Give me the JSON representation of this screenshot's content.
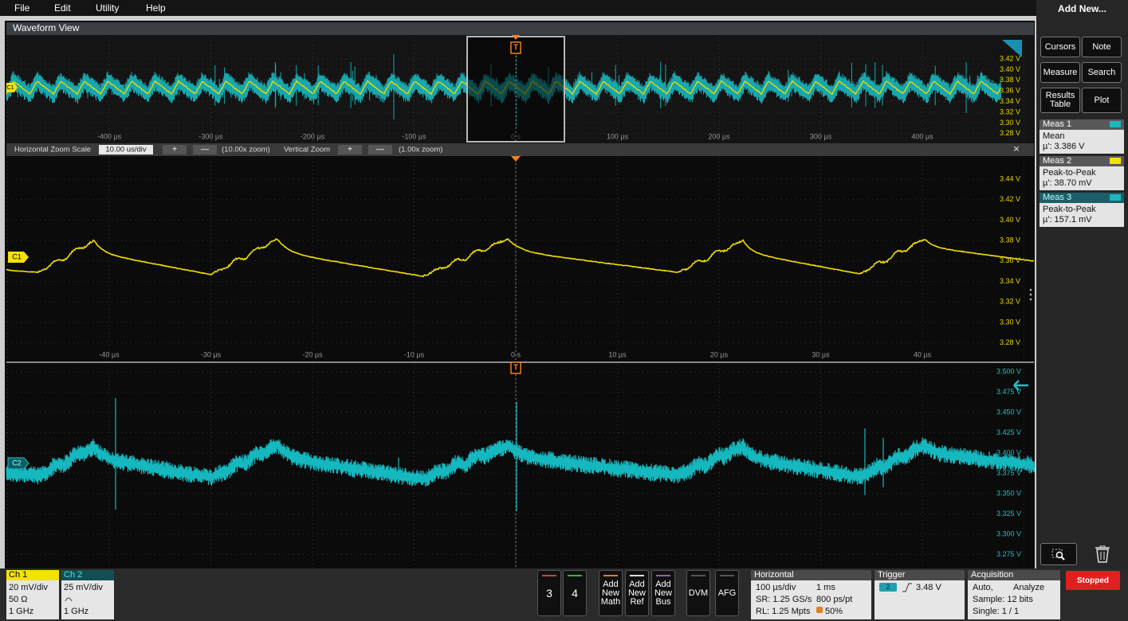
{
  "menu": {
    "items": [
      "File",
      "Edit",
      "Utility",
      "Help"
    ]
  },
  "waveform_view": {
    "title": "Waveform View",
    "overview": {
      "channel": "C1",
      "trigger": "T",
      "x_labels": [
        "-400 µs",
        "-300 µs",
        "-200 µs",
        "-100 µs",
        "0 s",
        "100 µs",
        "200 µs",
        "300 µs",
        "400 µs"
      ],
      "y_labels": [
        "3.42 V",
        "3.40 V",
        "3.38 V",
        "3.36 V",
        "3.34 V",
        "3.32 V",
        "3.30 V",
        "3.28 V"
      ]
    },
    "zoom_bar": {
      "scale_label": "Horizontal Zoom Scale",
      "scale_value": "10.00 us/div",
      "plus": "+",
      "minus": "—",
      "h_zoom": "(10.00x zoom)",
      "vertical_label": "Vertical Zoom",
      "v_zoom": "(1.00x zoom)",
      "close": "×"
    },
    "zoom1": {
      "channel": "C1",
      "x_labels": [
        "-40 µs",
        "-30 µs",
        "-20 µs",
        "-10 µs",
        "0 s",
        "10 µs",
        "20 µs",
        "30 µs",
        "40 µs"
      ],
      "y_labels": [
        "3.44 V",
        "3.42 V",
        "3.40 V",
        "3.38 V",
        "3.36 V",
        "3.34 V",
        "3.32 V",
        "3.30 V",
        "3.28 V"
      ]
    },
    "zoom2": {
      "channel": "C2",
      "trigger": "T",
      "y_labels": [
        "3.500 V",
        "3.475 V",
        "3.450 V",
        "3.425 V",
        "3.400 V",
        "3.375 V",
        "3.350 V",
        "3.325 V",
        "3.300 V",
        "3.275 V"
      ]
    }
  },
  "sidebar": {
    "title": "Add New...",
    "buttons": [
      "Cursors",
      "Note",
      "Measure",
      "Search",
      "Results Table",
      "Plot"
    ],
    "measurements": [
      {
        "name": "Meas 1",
        "type": "Mean",
        "value": "µ': 3.386 V"
      },
      {
        "name": "Meas 2",
        "type": "Peak-to-Peak",
        "value": "µ': 38.70 mV"
      },
      {
        "name": "Meas 3",
        "type": "Peak-to-Peak",
        "value": "µ': 157.1 mV"
      }
    ]
  },
  "channels": [
    {
      "name": "Ch 1",
      "scale": "20 mV/div",
      "termination": "50 Ω",
      "bandwidth": "1 GHz"
    },
    {
      "name": "Ch 2",
      "scale": "25 mV/div",
      "bandwidth": "1 GHz"
    }
  ],
  "controls": {
    "buttons": [
      "3",
      "4",
      "Add New Math",
      "Add New Ref",
      "Add New Bus",
      "DVM",
      "AFG"
    ]
  },
  "horizontal": {
    "title": "Horizontal",
    "scale": "100 µs/div",
    "duration": "1 ms",
    "sample_rate": "SR: 1.25 GS/s",
    "resolution": "800 ps/pt",
    "record_length": "RL: 1.25 Mpts",
    "position": "50%"
  },
  "trigger": {
    "title": "Trigger",
    "source": "2",
    "level": "3.48 V"
  },
  "acquisition": {
    "title": "Acquisition",
    "mode": "Auto,",
    "analysis": "Analyze",
    "sample": "Sample: 12 bits",
    "count": "Single: 1 / 1"
  },
  "run_state": "Stopped"
}
